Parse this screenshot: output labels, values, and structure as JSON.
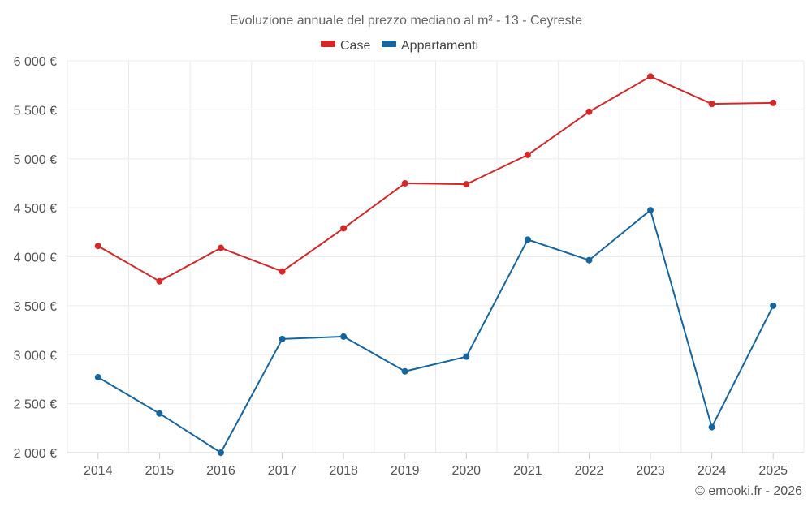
{
  "chart_data": {
    "type": "line",
    "title": "Evoluzione annuale del prezzo mediano al m² - 13 - Ceyreste",
    "categories": [
      "2014",
      "2015",
      "2016",
      "2017",
      "2018",
      "2019",
      "2020",
      "2021",
      "2022",
      "2023",
      "2024",
      "2025"
    ],
    "series": [
      {
        "name": "Case",
        "color": "#d62728",
        "values": [
          4110,
          3750,
          4090,
          3850,
          4290,
          4750,
          4740,
          5040,
          5480,
          5840,
          5560,
          5570
        ]
      },
      {
        "name": "Appartamenti",
        "color": "#1565a0",
        "values": [
          2770,
          2400,
          2000,
          3160,
          3185,
          2830,
          2980,
          4175,
          3965,
          4475,
          2260,
          3500
        ]
      }
    ],
    "ylim": [
      2000,
      6000
    ],
    "yticks": [
      2000,
      2500,
      3000,
      3500,
      4000,
      4500,
      5000,
      5500,
      6000
    ],
    "ytick_labels": [
      "2 000 €",
      "2 500 €",
      "3 000 €",
      "3 500 €",
      "4 000 €",
      "4 500 €",
      "5 000 €",
      "5 500 €",
      "6 000 €"
    ],
    "legend_position": "top-center",
    "grid": true,
    "credit": "© emooki.fr - 2026"
  }
}
